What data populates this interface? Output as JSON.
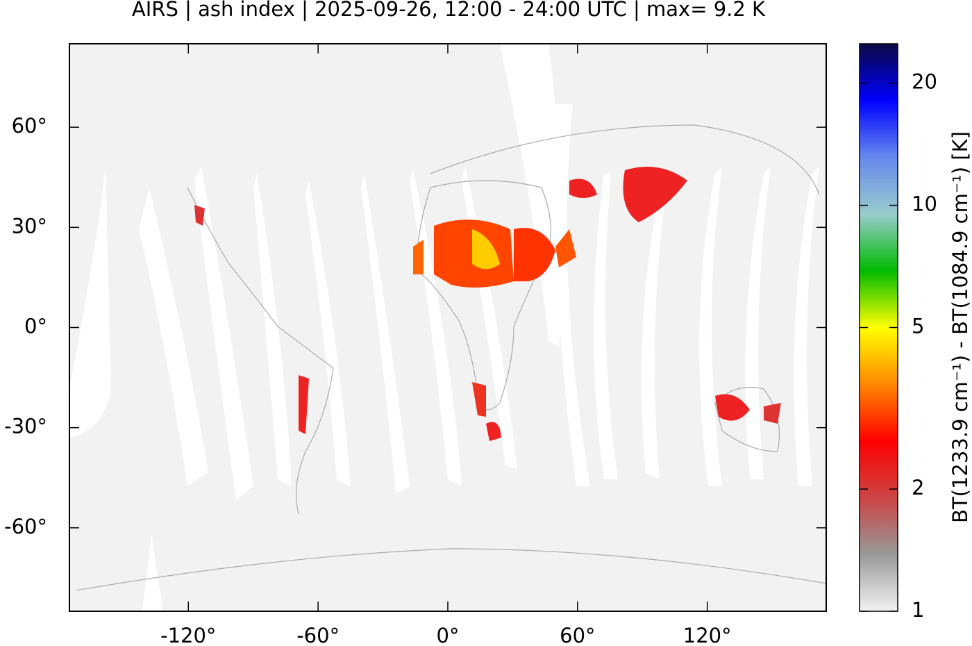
{
  "chart_data": {
    "type": "map",
    "title": "AIRS | ash index | 2025-09-26, 12:00 - 24:00 UTC | max= 9.2 K",
    "xlim": [
      -175,
      175
    ],
    "xticks": [
      {
        "value": -120,
        "label": "-120°"
      },
      {
        "value": -60,
        "label": "-60°"
      },
      {
        "value": 0,
        "label": "0°"
      },
      {
        "value": 60,
        "label": "60°"
      },
      {
        "value": 120,
        "label": "120°"
      }
    ],
    "ylim": [
      -85,
      85
    ],
    "yticks": [
      {
        "value": -60,
        "label": "-60°"
      },
      {
        "value": -30,
        "label": "-30°"
      },
      {
        "value": 0,
        "label": "0°"
      },
      {
        "value": 30,
        "label": "30°"
      },
      {
        "value": 60,
        "label": "60°"
      }
    ],
    "colorbar": {
      "label": "BT(1233.9 cm⁻¹) - BT(1084.9 cm⁻¹) [K]",
      "log_scale": true,
      "lim": [
        1,
        25
      ],
      "ticks": [
        1,
        2,
        5,
        10,
        20
      ],
      "colormap": [
        "#f2f2f2",
        "#999999",
        "#cc4444",
        "#ff0000",
        "#ff8800",
        "#ffff00",
        "#00bb00",
        "#99cccc",
        "#6688ee",
        "#0000ff",
        "#0a0a44"
      ]
    }
  }
}
